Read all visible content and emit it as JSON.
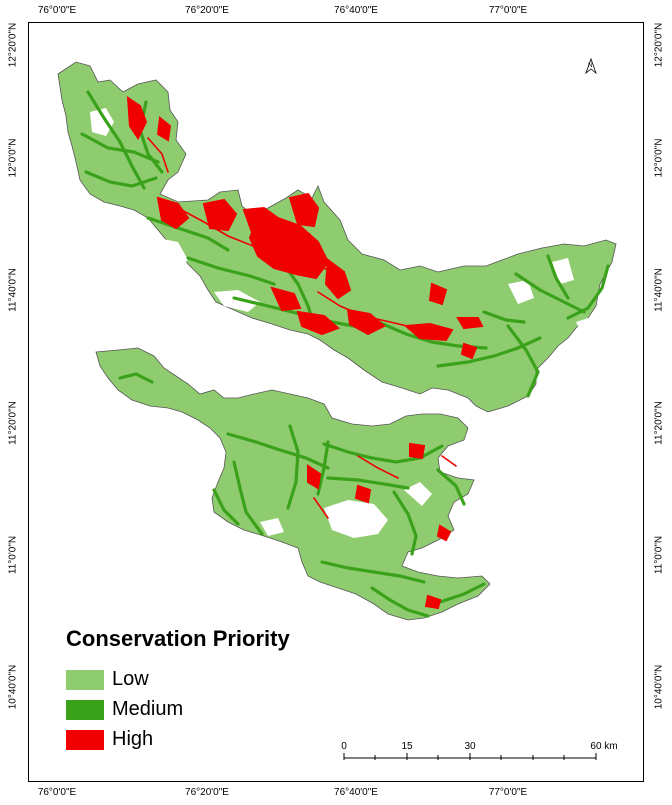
{
  "longitude_labels": [
    "76°0'0\"E",
    "76°20'0\"E",
    "76°40'0\"E",
    "77°0'0\"E"
  ],
  "latitude_labels": [
    "12°20'0\"N",
    "12°0'0\"N",
    "11°40'0\"N",
    "11°20'0\"N",
    "11°0'0\"N",
    "10°40'0\"N"
  ],
  "legend": {
    "title": "Conservation Priority",
    "items": [
      {
        "label": "Low",
        "color": "#8fcc70"
      },
      {
        "label": "Medium",
        "color": "#3aa21a"
      },
      {
        "label": "High",
        "color": "#f00000"
      }
    ]
  },
  "scale_bar": {
    "labels": [
      "0",
      "15",
      "30",
      "60 km"
    ]
  },
  "north_arrow_label": "N",
  "colors": {
    "low": "#8fcc70",
    "medium": "#3aa21a",
    "high": "#f00000",
    "background": "#ffffff",
    "outline": "#555555"
  }
}
